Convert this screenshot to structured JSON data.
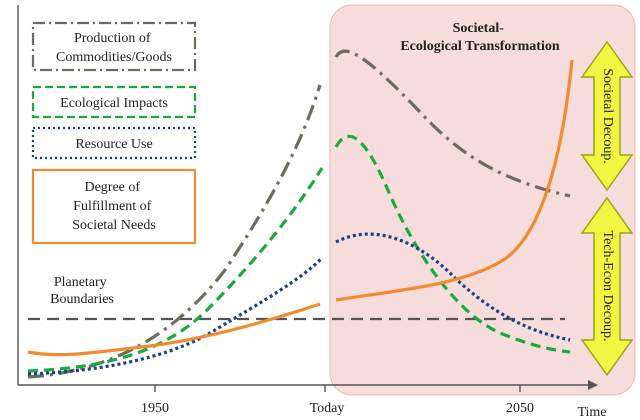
{
  "region": {
    "title": "Societal-Ecological Transformation",
    "fill": "#f7dcdc",
    "stroke": "#e8b8b8"
  },
  "legend": [
    {
      "id": "production",
      "label": "Production of Commodities/Goods",
      "color": "#6b6b5e",
      "style": "dash-dot"
    },
    {
      "id": "ecological",
      "label": "Ecological Impacts",
      "color": "#1aaa3c",
      "style": "dashed"
    },
    {
      "id": "resource",
      "label": "Resource Use",
      "color": "#1a3f8c",
      "style": "dotted"
    },
    {
      "id": "needs",
      "label": "Degree of Fulfillment of Societal Needs",
      "color": "#f28a2e",
      "style": "solid"
    }
  ],
  "boundaries_label": "Planetary Boundaries",
  "boundaries_color": "#555555",
  "x_ticks": [
    "1950",
    "Today",
    "2050"
  ],
  "x_axis_label": "Time",
  "arrows": [
    {
      "id": "societal-decoup",
      "label": "Societal Decoup.",
      "fill": "#f2f542",
      "stroke": "#9aa51a"
    },
    {
      "id": "tech-econ-decoup",
      "label": "Tech-Econ Decoup.",
      "fill": "#f2f542",
      "stroke": "#9aa51a"
    }
  ]
}
